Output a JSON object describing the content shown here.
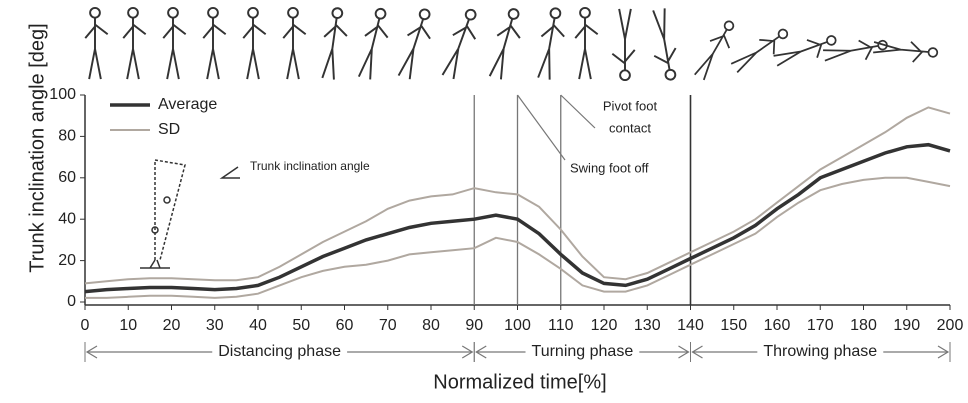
{
  "chart_data": {
    "type": "line",
    "xlabel": "Normalized time[%]",
    "ylabel": "Trunk inclination angle [deg]",
    "x": [
      0,
      5,
      10,
      15,
      20,
      25,
      30,
      35,
      40,
      45,
      50,
      55,
      60,
      65,
      70,
      75,
      80,
      85,
      90,
      95,
      100,
      105,
      110,
      115,
      120,
      125,
      130,
      135,
      140,
      145,
      150,
      155,
      160,
      165,
      170,
      175,
      180,
      185,
      190,
      195,
      200
    ],
    "series": [
      {
        "name": "Average",
        "color": "#333333",
        "values": [
          5,
          6,
          6.5,
          7,
          7,
          6.5,
          6,
          6.5,
          8,
          12,
          17,
          22,
          26,
          30,
          33,
          36,
          38,
          39,
          40,
          42,
          40,
          33,
          23,
          14,
          9,
          8,
          11,
          16,
          21,
          26,
          31,
          37,
          45,
          52,
          60,
          64,
          68,
          72,
          75,
          76,
          73
        ]
      },
      {
        "name": "SD",
        "color": "#b0a8a0",
        "upper": [
          9,
          10,
          11,
          11.5,
          11.5,
          11,
          10.5,
          10.5,
          12,
          17,
          23,
          29,
          34,
          39,
          45,
          49,
          51,
          52,
          55,
          53,
          52,
          46,
          35,
          22,
          12,
          11,
          14,
          19,
          24,
          29,
          34,
          40,
          48,
          56,
          64,
          70,
          76,
          82,
          89,
          94,
          91
        ],
        "lower": [
          2,
          2,
          2.5,
          3,
          3,
          2.5,
          2,
          2.5,
          4,
          8,
          12,
          15,
          17,
          18,
          20,
          23,
          24,
          25,
          26,
          31,
          29,
          23,
          16,
          8,
          5,
          5,
          8,
          13,
          18,
          23,
          28,
          33,
          41,
          48,
          54,
          57,
          59,
          60,
          60,
          58,
          56
        ]
      }
    ],
    "xlim": [
      0,
      200
    ],
    "ylim": [
      0,
      100
    ],
    "xticks": [
      0,
      10,
      20,
      30,
      40,
      50,
      60,
      70,
      80,
      90,
      100,
      110,
      120,
      130,
      140,
      150,
      160,
      170,
      180,
      190,
      200
    ],
    "yticks": [
      0,
      20,
      40,
      60,
      80,
      100
    ],
    "vlines": [
      90,
      100,
      110,
      140
    ],
    "legend": "upper-left",
    "phases": [
      {
        "label": "Distancing phase",
        "start": 0,
        "end": 90
      },
      {
        "label": "Turning phase",
        "start": 90,
        "end": 140
      },
      {
        "label": "Throwing phase",
        "start": 140,
        "end": 200
      }
    ],
    "annotations": {
      "trunk": "Trunk inclination angle",
      "pivot": [
        "Pivot foot",
        "contact"
      ],
      "swing": "Swing foot off"
    }
  }
}
